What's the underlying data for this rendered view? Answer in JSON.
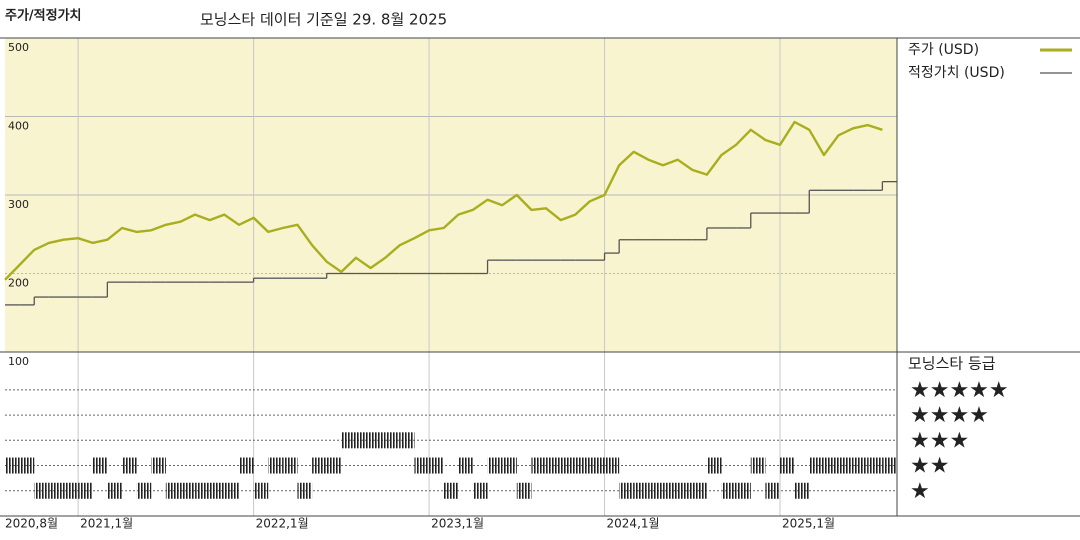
{
  "chart_data": [
    {
      "type": "line",
      "title": "주가/적정가치",
      "subtitle": "모닝스타 데이터 기준일 29. 8월 2025",
      "x": [
        "2020-08",
        "2020-09",
        "2020-10",
        "2020-11",
        "2020-12",
        "2021-01",
        "2021-02",
        "2021-03",
        "2021-04",
        "2021-05",
        "2021-06",
        "2021-07",
        "2021-08",
        "2021-09",
        "2021-10",
        "2021-11",
        "2021-12",
        "2022-01",
        "2022-02",
        "2022-03",
        "2022-04",
        "2022-05",
        "2022-06",
        "2022-07",
        "2022-08",
        "2022-09",
        "2022-10",
        "2022-11",
        "2022-12",
        "2023-01",
        "2023-02",
        "2023-03",
        "2023-04",
        "2023-05",
        "2023-06",
        "2023-07",
        "2023-08",
        "2023-09",
        "2023-10",
        "2023-11",
        "2023-12",
        "2024-01",
        "2024-02",
        "2024-03",
        "2024-04",
        "2024-05",
        "2024-06",
        "2024-07",
        "2024-08",
        "2024-09",
        "2024-10",
        "2024-11",
        "2024-12",
        "2025-01",
        "2025-02",
        "2025-03",
        "2025-04",
        "2025-05",
        "2025-06",
        "2025-07",
        "2025-08"
      ],
      "xlim": [
        "2020-08",
        "2025-09"
      ],
      "xticks": [
        {
          "value": "2020-08",
          "label": "2020,8월"
        },
        {
          "value": "2021-01",
          "label": "2021,1월"
        },
        {
          "value": "2022-01",
          "label": "2022,1월"
        },
        {
          "value": "2023-01",
          "label": "2023,1월"
        },
        {
          "value": "2024-01",
          "label": "2024,1월"
        },
        {
          "value": "2025-01",
          "label": "2025,1월"
        }
      ],
      "ylim": [
        100,
        500
      ],
      "yticks": [
        100,
        200,
        300,
        400,
        500
      ],
      "grid": true,
      "legend": "right",
      "series": [
        {
          "name": "주가 (USD)",
          "color": "#a9ae1f",
          "values": [
            192,
            211,
            230,
            239,
            243,
            245,
            239,
            243,
            258,
            253,
            255,
            262,
            266,
            275,
            268,
            275,
            262,
            271,
            253,
            258,
            262,
            236,
            215,
            202,
            220,
            207,
            220,
            236,
            245,
            255,
            258,
            275,
            281,
            294,
            287,
            300,
            281,
            283,
            268,
            275,
            292,
            300,
            338,
            355,
            345,
            338,
            345,
            332,
            326,
            351,
            364,
            383,
            370,
            364,
            393,
            383,
            351,
            376,
            385,
            389,
            383
          ]
        },
        {
          "name": "적정가치 (USD)",
          "color": "#555555",
          "step": true,
          "values": [
            160,
            160,
            170,
            170,
            170,
            170,
            170,
            189,
            189,
            189,
            189,
            189,
            189,
            189,
            189,
            189,
            189,
            194,
            194,
            194,
            194,
            194,
            200,
            200,
            200,
            200,
            200,
            200,
            200,
            200,
            200,
            200,
            200,
            217,
            217,
            217,
            217,
            217,
            217,
            217,
            217,
            226,
            243,
            243,
            243,
            243,
            243,
            243,
            258,
            258,
            258,
            277,
            277,
            277,
            277,
            306,
            306,
            306,
            306,
            306,
            317
          ]
        }
      ]
    },
    {
      "type": "rating",
      "title": "모닝스타 등급",
      "x": [
        "2020-08",
        "2020-09",
        "2020-10",
        "2020-11",
        "2020-12",
        "2021-01",
        "2021-02",
        "2021-03",
        "2021-04",
        "2021-05",
        "2021-06",
        "2021-07",
        "2021-08",
        "2021-09",
        "2021-10",
        "2021-11",
        "2021-12",
        "2022-01",
        "2022-02",
        "2022-03",
        "2022-04",
        "2022-05",
        "2022-06",
        "2022-07",
        "2022-08",
        "2022-09",
        "2022-10",
        "2022-11",
        "2022-12",
        "2023-01",
        "2023-02",
        "2023-03",
        "2023-04",
        "2023-05",
        "2023-06",
        "2023-07",
        "2023-08",
        "2023-09",
        "2023-10",
        "2023-11",
        "2023-12",
        "2024-01",
        "2024-02",
        "2024-03",
        "2024-04",
        "2024-05",
        "2024-06",
        "2024-07",
        "2024-08",
        "2024-09",
        "2024-10",
        "2024-11",
        "2024-12",
        "2025-01",
        "2025-02",
        "2025-03",
        "2025-04",
        "2025-05",
        "2025-06",
        "2025-07",
        "2025-08"
      ],
      "ylim": [
        0,
        6.5
      ],
      "yticks": [
        {
          "value": 5,
          "label": "★★★★★"
        },
        {
          "value": 4,
          "label": "★★★★"
        },
        {
          "value": 3,
          "label": "★★★"
        },
        {
          "value": 2,
          "label": "★★"
        },
        {
          "value": 1,
          "label": "★"
        }
      ],
      "color": "#222222",
      "values": [
        2,
        2,
        1,
        1,
        1,
        1,
        2,
        1,
        2,
        1,
        2,
        1,
        1,
        1,
        1,
        1,
        2,
        1,
        2,
        2,
        1,
        2,
        2,
        3,
        3,
        3,
        3,
        3,
        2,
        2,
        1,
        2,
        1,
        2,
        2,
        1,
        2,
        2,
        2,
        2,
        2,
        2,
        1,
        1,
        1,
        1,
        1,
        1,
        2,
        1,
        1,
        2,
        1,
        2,
        1,
        2,
        2,
        2,
        2,
        2,
        2
      ]
    }
  ]
}
